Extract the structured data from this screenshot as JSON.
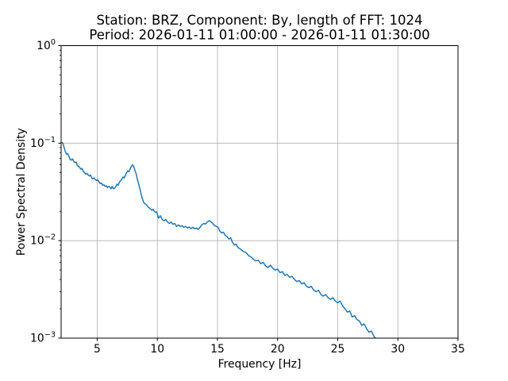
{
  "chart_data": {
    "type": "line",
    "title": "Station: BRZ, Component: By, length of FFT: 1024",
    "subtitle": "Period: 2026-01-11 01:00:00 - 2026-01-11 01:30:00",
    "xlabel": "Frequency [Hz]",
    "ylabel": "Power Spectral Density",
    "xscale": "linear",
    "yscale": "log",
    "xlim": [
      2,
      35
    ],
    "ylim": [
      0.001,
      1.0
    ],
    "x_ticks": [
      5,
      10,
      15,
      20,
      25,
      30,
      35
    ],
    "y_tick_exponents": [
      0,
      -1,
      -2,
      -3
    ],
    "grid": true,
    "legend_position": "none",
    "line_color": "#1f77b4",
    "grid_color": "#b0b0b0",
    "spine_color": "#000000",
    "background_color": "#ffffff",
    "series": [
      {
        "name": "PSD",
        "points": [
          [
            2.05,
            0.102
          ],
          [
            2.15,
            0.1
          ],
          [
            2.25,
            0.09
          ],
          [
            2.35,
            0.082
          ],
          [
            2.45,
            0.077
          ],
          [
            2.55,
            0.078
          ],
          [
            2.65,
            0.073
          ],
          [
            2.75,
            0.068
          ],
          [
            2.85,
            0.067
          ],
          [
            2.95,
            0.069
          ],
          [
            3.05,
            0.065
          ],
          [
            3.15,
            0.063
          ],
          [
            3.25,
            0.064
          ],
          [
            3.35,
            0.059
          ],
          [
            3.45,
            0.058
          ],
          [
            3.55,
            0.056
          ],
          [
            3.65,
            0.054
          ],
          [
            3.75,
            0.055
          ],
          [
            3.85,
            0.051
          ],
          [
            3.95,
            0.05
          ],
          [
            4.05,
            0.048
          ],
          [
            4.15,
            0.049
          ],
          [
            4.25,
            0.047
          ],
          [
            4.35,
            0.046
          ],
          [
            4.45,
            0.047
          ],
          [
            4.55,
            0.044
          ],
          [
            4.65,
            0.043
          ],
          [
            4.75,
            0.044
          ],
          [
            4.85,
            0.042
          ],
          [
            4.95,
            0.0415
          ],
          [
            5.05,
            0.042
          ],
          [
            5.15,
            0.04
          ],
          [
            5.25,
            0.0385
          ],
          [
            5.35,
            0.039
          ],
          [
            5.45,
            0.037
          ],
          [
            5.55,
            0.0375
          ],
          [
            5.65,
            0.036
          ],
          [
            5.75,
            0.0365
          ],
          [
            5.85,
            0.035
          ],
          [
            5.95,
            0.036
          ],
          [
            6.05,
            0.0355
          ],
          [
            6.15,
            0.034
          ],
          [
            6.25,
            0.036
          ],
          [
            6.35,
            0.034
          ],
          [
            6.45,
            0.0345
          ],
          [
            6.55,
            0.036
          ],
          [
            6.65,
            0.038
          ],
          [
            6.75,
            0.037
          ],
          [
            6.85,
            0.04
          ],
          [
            6.95,
            0.041
          ],
          [
            7.05,
            0.043
          ],
          [
            7.15,
            0.045
          ],
          [
            7.25,
            0.044
          ],
          [
            7.35,
            0.047
          ],
          [
            7.45,
            0.05
          ],
          [
            7.55,
            0.052
          ],
          [
            7.65,
            0.051
          ],
          [
            7.75,
            0.055
          ],
          [
            7.85,
            0.058
          ],
          [
            7.95,
            0.06
          ],
          [
            8.05,
            0.057
          ],
          [
            8.15,
            0.052
          ],
          [
            8.25,
            0.048
          ],
          [
            8.35,
            0.042
          ],
          [
            8.45,
            0.038
          ],
          [
            8.55,
            0.034
          ],
          [
            8.65,
            0.03
          ],
          [
            8.75,
            0.027
          ],
          [
            8.85,
            0.025
          ],
          [
            8.95,
            0.024
          ],
          [
            9.05,
            0.0235
          ],
          [
            9.15,
            0.023
          ],
          [
            9.25,
            0.022
          ],
          [
            9.35,
            0.0215
          ],
          [
            9.45,
            0.021
          ],
          [
            9.55,
            0.0205
          ],
          [
            9.65,
            0.021
          ],
          [
            9.75,
            0.02
          ],
          [
            9.85,
            0.0195
          ],
          [
            9.95,
            0.0197
          ],
          [
            10.1,
            0.017
          ],
          [
            10.25,
            0.018
          ],
          [
            10.4,
            0.0165
          ],
          [
            10.55,
            0.016
          ],
          [
            10.7,
            0.0165
          ],
          [
            10.85,
            0.0155
          ],
          [
            11.0,
            0.015
          ],
          [
            11.15,
            0.0155
          ],
          [
            11.3,
            0.0147
          ],
          [
            11.45,
            0.015
          ],
          [
            11.6,
            0.014
          ],
          [
            11.75,
            0.0145
          ],
          [
            11.9,
            0.014
          ],
          [
            12.05,
            0.0142
          ],
          [
            12.2,
            0.0137
          ],
          [
            12.35,
            0.014
          ],
          [
            12.5,
            0.0135
          ],
          [
            12.65,
            0.0138
          ],
          [
            12.8,
            0.0133
          ],
          [
            12.95,
            0.0137
          ],
          [
            13.1,
            0.0133
          ],
          [
            13.25,
            0.0135
          ],
          [
            13.4,
            0.013
          ],
          [
            13.55,
            0.0137
          ],
          [
            13.7,
            0.0145
          ],
          [
            13.85,
            0.015
          ],
          [
            14.0,
            0.0148
          ],
          [
            14.15,
            0.0155
          ],
          [
            14.3,
            0.016
          ],
          [
            14.45,
            0.0157
          ],
          [
            14.6,
            0.015
          ],
          [
            14.75,
            0.0143
          ],
          [
            14.9,
            0.014
          ],
          [
            15.05,
            0.0137
          ],
          [
            15.2,
            0.0125
          ],
          [
            15.35,
            0.012
          ],
          [
            15.5,
            0.0122
          ],
          [
            15.65,
            0.0113
          ],
          [
            15.8,
            0.011
          ],
          [
            15.95,
            0.0104
          ],
          [
            16.1,
            0.0107
          ],
          [
            16.25,
            0.0096
          ],
          [
            16.4,
            0.009
          ],
          [
            16.55,
            0.0092
          ],
          [
            16.7,
            0.0085
          ],
          [
            16.85,
            0.0083
          ],
          [
            17.0,
            0.008
          ],
          [
            17.2,
            0.0077
          ],
          [
            17.4,
            0.0075
          ],
          [
            17.6,
            0.007
          ],
          [
            17.8,
            0.0068
          ],
          [
            18.0,
            0.0064
          ],
          [
            18.2,
            0.0062
          ],
          [
            18.4,
            0.0063
          ],
          [
            18.6,
            0.0058
          ],
          [
            18.8,
            0.006
          ],
          [
            19.0,
            0.0055
          ],
          [
            19.2,
            0.0053
          ],
          [
            19.4,
            0.0056
          ],
          [
            19.6,
            0.0052
          ],
          [
            19.8,
            0.005
          ],
          [
            20.0,
            0.0051
          ],
          [
            20.2,
            0.0047
          ],
          [
            20.4,
            0.0048
          ],
          [
            20.6,
            0.0044
          ],
          [
            20.8,
            0.0045
          ],
          [
            21.0,
            0.0042
          ],
          [
            21.2,
            0.0043
          ],
          [
            21.4,
            0.004
          ],
          [
            21.6,
            0.0038
          ],
          [
            21.8,
            0.0039
          ],
          [
            22.0,
            0.0036
          ],
          [
            22.2,
            0.0037
          ],
          [
            22.4,
            0.0034
          ],
          [
            22.6,
            0.0033
          ],
          [
            22.8,
            0.0034
          ],
          [
            23.0,
            0.0031
          ],
          [
            23.2,
            0.003
          ],
          [
            23.4,
            0.0031
          ],
          [
            23.6,
            0.0028
          ],
          [
            23.8,
            0.0027
          ],
          [
            24.0,
            0.0028
          ],
          [
            24.2,
            0.0026
          ],
          [
            24.4,
            0.0025
          ],
          [
            24.6,
            0.0026
          ],
          [
            24.8,
            0.0024
          ],
          [
            25.0,
            0.0023
          ],
          [
            25.2,
            0.0024
          ],
          [
            25.4,
            0.00215
          ],
          [
            25.6,
            0.002
          ],
          [
            25.8,
            0.00185
          ],
          [
            26.0,
            0.0019
          ],
          [
            26.2,
            0.00165
          ],
          [
            26.4,
            0.0017
          ],
          [
            26.6,
            0.00155
          ],
          [
            26.8,
            0.0015
          ],
          [
            27.0,
            0.00135
          ],
          [
            27.2,
            0.0014
          ],
          [
            27.4,
            0.00125
          ],
          [
            27.6,
            0.00115
          ],
          [
            27.8,
            0.00118
          ],
          [
            28.0,
            0.00105
          ],
          [
            28.2,
            0.00096
          ]
        ]
      }
    ]
  }
}
